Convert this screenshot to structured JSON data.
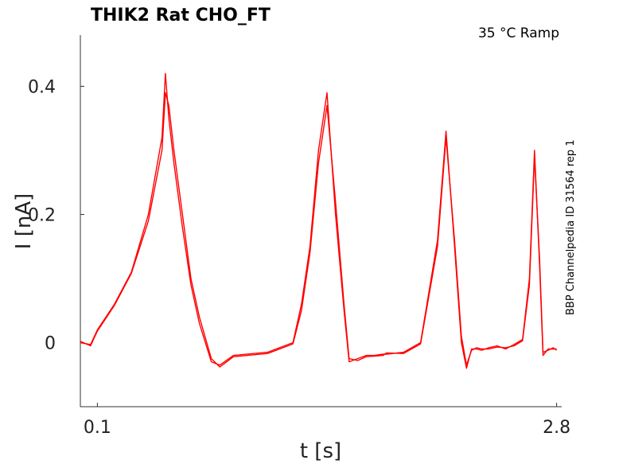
{
  "chart_data": {
    "type": "line",
    "title": "THIK2  Rat  CHO_FT",
    "condition": "35 °C  Ramp",
    "side_label": "BBP Channelpedia ID 31564 rep 1",
    "xlabel": "t [s]",
    "ylabel": "I [nA]",
    "xlim": [
      0.0,
      2.83
    ],
    "ylim": [
      -0.1,
      0.48
    ],
    "x_ticks": [
      0.1,
      2.8
    ],
    "x_tick_labels": [
      "0.1",
      "2.8"
    ],
    "y_ticks": [
      0,
      0.2,
      0.4
    ],
    "y_tick_labels": [
      "0",
      "0.2",
      "0.4"
    ],
    "grid": false,
    "line_color": "#ff0000",
    "series": [
      {
        "x": [
          0.0,
          0.06,
          0.1,
          0.2,
          0.3,
          0.4,
          0.48,
          0.5,
          0.52,
          0.55,
          0.6,
          0.65,
          0.7,
          0.77,
          0.82,
          0.9,
          1.1,
          1.25,
          1.3,
          1.35,
          1.4,
          1.45,
          1.5,
          1.55,
          1.58,
          1.63,
          1.68,
          1.73,
          1.78,
          1.8,
          1.9,
          2.0,
          2.1,
          2.15,
          2.2,
          2.24,
          2.27,
          2.3,
          2.33,
          2.36,
          2.4,
          2.45,
          2.5,
          2.55,
          2.6,
          2.64,
          2.67,
          2.7,
          2.72,
          2.75,
          2.78,
          2.8
        ],
        "values": [
          0.0,
          -0.003,
          0.02,
          0.06,
          0.11,
          0.2,
          0.32,
          0.42,
          0.35,
          0.28,
          0.18,
          0.09,
          0.03,
          -0.03,
          -0.035,
          -0.02,
          -0.015,
          0.0,
          0.06,
          0.15,
          0.3,
          0.39,
          0.2,
          0.05,
          -0.03,
          -0.025,
          -0.02,
          -0.02,
          -0.018,
          -0.018,
          -0.015,
          0.0,
          0.16,
          0.33,
          0.15,
          0.0,
          -0.04,
          -0.01,
          -0.01,
          -0.012,
          -0.008,
          -0.005,
          -0.01,
          -0.003,
          0.005,
          0.1,
          0.3,
          0.12,
          -0.02,
          -0.01,
          -0.01,
          -0.01
        ]
      },
      {
        "x": [
          0.0,
          0.06,
          0.1,
          0.2,
          0.3,
          0.4,
          0.48,
          0.5,
          0.52,
          0.55,
          0.6,
          0.65,
          0.7,
          0.77,
          0.82,
          0.9,
          1.1,
          1.25,
          1.3,
          1.35,
          1.4,
          1.45,
          1.5,
          1.55,
          1.58,
          1.63,
          1.68,
          1.73,
          1.78,
          1.8,
          1.9,
          2.0,
          2.1,
          2.15,
          2.2,
          2.24,
          2.27,
          2.3,
          2.33,
          2.36,
          2.4,
          2.45,
          2.5,
          2.55,
          2.6,
          2.64,
          2.67,
          2.7,
          2.72,
          2.75,
          2.78,
          2.8
        ],
        "values": [
          0.002,
          -0.005,
          0.018,
          0.058,
          0.108,
          0.19,
          0.3,
          0.39,
          0.37,
          0.3,
          0.2,
          0.1,
          0.04,
          -0.025,
          -0.038,
          -0.022,
          -0.017,
          -0.002,
          0.05,
          0.14,
          0.28,
          0.37,
          0.22,
          0.06,
          -0.025,
          -0.028,
          -0.022,
          -0.021,
          -0.02,
          -0.016,
          -0.017,
          -0.002,
          0.15,
          0.32,
          0.16,
          0.01,
          -0.035,
          -0.012,
          -0.008,
          -0.01,
          -0.01,
          -0.007,
          -0.008,
          -0.005,
          0.003,
          0.09,
          0.29,
          0.13,
          -0.015,
          -0.012,
          -0.008,
          -0.012
        ]
      }
    ]
  }
}
